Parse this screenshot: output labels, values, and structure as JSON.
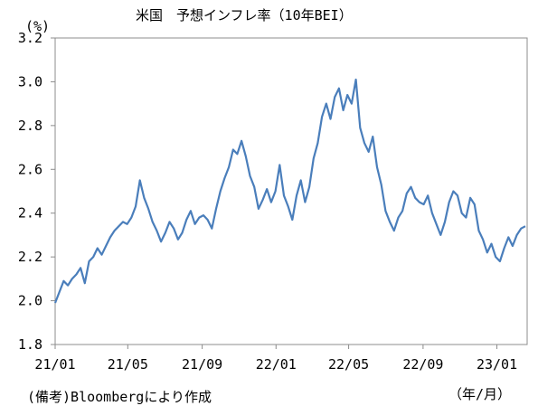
{
  "chart_data": {
    "type": "line",
    "title": "米国　予想インフレ率（10年BEI）",
    "y_unit_label": "(%)",
    "x_unit_label": "（年/月）",
    "source_note": "(備考)Bloombergにより作成",
    "ylim": [
      1.8,
      3.2
    ],
    "y_ticks": [
      "1.8",
      "2.0",
      "2.2",
      "2.4",
      "2.6",
      "2.8",
      "3.0",
      "3.2"
    ],
    "x_ticks": [
      "21/01",
      "21/05",
      "21/09",
      "22/01",
      "22/05",
      "22/09",
      "23/01"
    ],
    "grid": false,
    "line_color": "#4a7ebb",
    "series": [
      {
        "x": [
          "2021-01-01",
          "2021-01-08",
          "2021-01-15",
          "2021-01-22",
          "2021-01-29",
          "2021-02-05",
          "2021-02-12",
          "2021-02-19",
          "2021-02-26",
          "2021-03-05",
          "2021-03-12",
          "2021-03-19",
          "2021-03-26",
          "2021-04-02",
          "2021-04-09",
          "2021-04-16",
          "2021-04-23",
          "2021-04-30",
          "2021-05-07",
          "2021-05-14",
          "2021-05-21",
          "2021-05-28",
          "2021-06-04",
          "2021-06-11",
          "2021-06-18",
          "2021-06-25",
          "2021-07-02",
          "2021-07-09",
          "2021-07-16",
          "2021-07-23",
          "2021-07-30",
          "2021-08-06",
          "2021-08-13",
          "2021-08-20",
          "2021-08-27",
          "2021-09-03",
          "2021-09-10",
          "2021-09-17",
          "2021-09-24",
          "2021-10-01",
          "2021-10-08",
          "2021-10-15",
          "2021-10-22",
          "2021-10-29",
          "2021-11-05",
          "2021-11-12",
          "2021-11-19",
          "2021-11-26",
          "2021-12-03",
          "2021-12-10",
          "2021-12-17",
          "2021-12-24",
          "2021-12-31",
          "2022-01-07",
          "2022-01-14",
          "2022-01-21",
          "2022-01-28",
          "2022-02-04",
          "2022-02-11",
          "2022-02-18",
          "2022-02-25",
          "2022-03-04",
          "2022-03-11",
          "2022-03-18",
          "2022-03-25",
          "2022-04-01",
          "2022-04-08",
          "2022-04-15",
          "2022-04-22",
          "2022-04-29",
          "2022-05-06",
          "2022-05-13",
          "2022-05-20",
          "2022-05-27",
          "2022-06-03",
          "2022-06-10",
          "2022-06-17",
          "2022-06-24",
          "2022-07-01",
          "2022-07-08",
          "2022-07-15",
          "2022-07-22",
          "2022-07-29",
          "2022-08-05",
          "2022-08-12",
          "2022-08-19",
          "2022-08-26",
          "2022-09-02",
          "2022-09-09",
          "2022-09-16",
          "2022-09-23",
          "2022-09-30",
          "2022-10-07",
          "2022-10-14",
          "2022-10-21",
          "2022-10-28",
          "2022-11-04",
          "2022-11-11",
          "2022-11-18",
          "2022-11-25",
          "2022-12-02",
          "2022-12-09",
          "2022-12-16",
          "2022-12-23",
          "2022-12-30",
          "2023-01-06",
          "2023-01-13",
          "2023-01-20",
          "2023-01-27",
          "2023-02-03",
          "2023-02-10",
          "2023-02-17"
        ],
        "values": [
          1.99,
          2.04,
          2.09,
          2.07,
          2.1,
          2.12,
          2.15,
          2.08,
          2.18,
          2.2,
          2.24,
          2.21,
          2.25,
          2.29,
          2.32,
          2.34,
          2.36,
          2.35,
          2.38,
          2.43,
          2.55,
          2.47,
          2.42,
          2.36,
          2.32,
          2.27,
          2.31,
          2.36,
          2.33,
          2.28,
          2.31,
          2.37,
          2.41,
          2.35,
          2.38,
          2.39,
          2.37,
          2.33,
          2.42,
          2.5,
          2.56,
          2.61,
          2.69,
          2.67,
          2.73,
          2.66,
          2.57,
          2.52,
          2.42,
          2.46,
          2.51,
          2.45,
          2.5,
          2.62,
          2.48,
          2.43,
          2.37,
          2.48,
          2.55,
          2.45,
          2.52,
          2.65,
          2.72,
          2.84,
          2.9,
          2.83,
          2.93,
          2.97,
          2.87,
          2.94,
          2.9,
          3.01,
          2.79,
          2.72,
          2.68,
          2.75,
          2.61,
          2.53,
          2.41,
          2.36,
          2.32,
          2.38,
          2.41,
          2.49,
          2.52,
          2.47,
          2.45,
          2.44,
          2.48,
          2.4,
          2.35,
          2.3,
          2.36,
          2.45,
          2.5,
          2.48,
          2.4,
          2.38,
          2.47,
          2.44,
          2.32,
          2.28,
          2.22,
          2.26,
          2.2,
          2.18,
          2.24,
          2.29,
          2.25,
          2.3,
          2.33,
          2.34
        ]
      }
    ]
  }
}
